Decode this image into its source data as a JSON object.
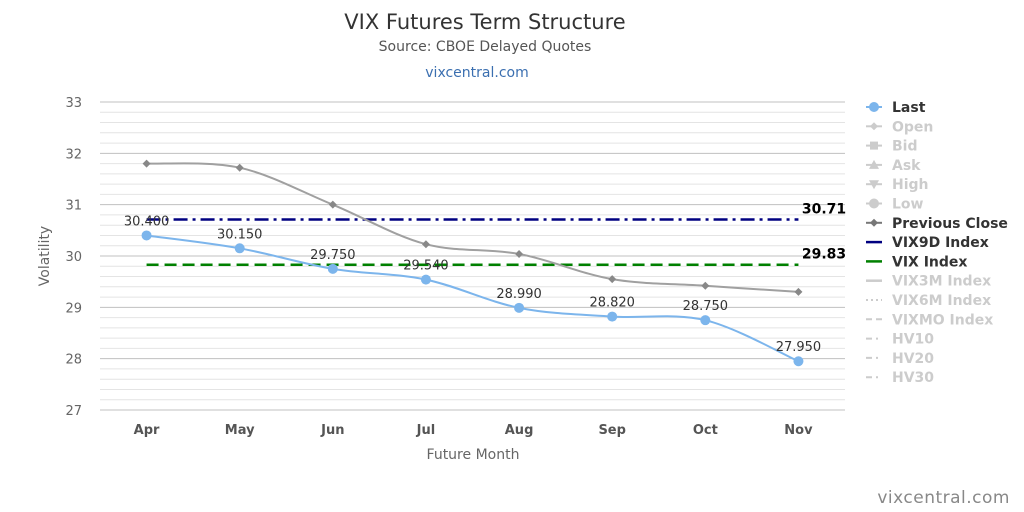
{
  "chart_data": {
    "type": "line",
    "title": "VIX Futures Term Structure",
    "subtitle": "Source: CBOE Delayed Quotes",
    "link_text": "vixcentral.com",
    "xlabel": "Future Month",
    "ylabel": "Volatility",
    "categories": [
      "Apr",
      "May",
      "Jun",
      "Jul",
      "Aug",
      "Sep",
      "Oct",
      "Nov"
    ],
    "ylim": [
      27,
      33
    ],
    "yticks": [
      "27",
      "28",
      "29",
      "30",
      "31",
      "32",
      "33"
    ],
    "grid": true,
    "legend_position": "right",
    "series": [
      {
        "name": "Last",
        "color": "#7cb5ec",
        "marker": "circle",
        "active": true,
        "values": [
          30.4,
          30.15,
          29.75,
          29.54,
          28.99,
          28.82,
          28.75,
          27.95
        ],
        "labels": [
          "30.400",
          "30.150",
          "29.750",
          "29.540",
          "28.990",
          "28.820",
          "28.750",
          "27.950"
        ]
      },
      {
        "name": "Previous Close",
        "color": "#a0a0a0",
        "marker": "diamond",
        "active": true,
        "values": [
          31.8,
          31.72,
          31.0,
          30.23,
          30.04,
          29.55,
          29.42,
          29.3
        ]
      },
      {
        "name": "VIX9D Index",
        "color": "#000080",
        "dash": "dash-dot",
        "active": true,
        "value": 30.71,
        "value_label": "30.71"
      },
      {
        "name": "VIX Index",
        "color": "#008000",
        "dash": "dash",
        "active": true,
        "value": 29.83,
        "value_label": "29.83"
      }
    ],
    "legend": [
      {
        "name": "Last",
        "symbol": "circle",
        "color": "#7cb5ec",
        "active": true
      },
      {
        "name": "Open",
        "symbol": "diamond",
        "color": "#cccccc",
        "active": false
      },
      {
        "name": "Bid",
        "symbol": "square",
        "color": "#cccccc",
        "active": false
      },
      {
        "name": "Ask",
        "symbol": "triangle",
        "color": "#cccccc",
        "active": false
      },
      {
        "name": "High",
        "symbol": "triangle-down",
        "color": "#cccccc",
        "active": false
      },
      {
        "name": "Low",
        "symbol": "circle",
        "color": "#cccccc",
        "active": false
      },
      {
        "name": "Previous Close",
        "symbol": "diamond",
        "color": "#777777",
        "active": true
      },
      {
        "name": "VIX9D Index",
        "symbol": "solid",
        "color": "#000080",
        "active": true
      },
      {
        "name": "VIX Index",
        "symbol": "solid",
        "color": "#008000",
        "active": true
      },
      {
        "name": "VIX3M Index",
        "symbol": "solid",
        "color": "#cccccc",
        "active": false
      },
      {
        "name": "VIX6M Index",
        "symbol": "dotted",
        "color": "#cccccc",
        "active": false
      },
      {
        "name": "VIXMO Index",
        "symbol": "dashed",
        "color": "#cccccc",
        "active": false
      },
      {
        "name": "HV10",
        "symbol": "dash-dot",
        "color": "#cccccc",
        "active": false
      },
      {
        "name": "HV20",
        "symbol": "dash-dot",
        "color": "#cccccc",
        "active": false
      },
      {
        "name": "HV30",
        "symbol": "dash-dot",
        "color": "#cccccc",
        "active": false
      }
    ]
  },
  "watermark": "vixcentral.com"
}
